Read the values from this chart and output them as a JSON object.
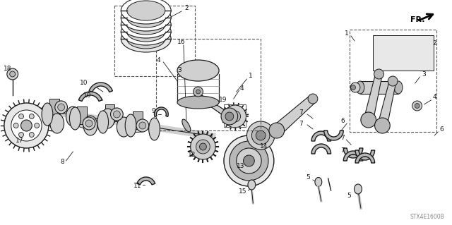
{
  "bg_color": "#ffffff",
  "fig_width": 6.4,
  "fig_height": 3.19,
  "dpi": 100,
  "watermark": "STX4E1600B",
  "direction_label": "FR.",
  "lc": "#1a1a1a",
  "tc": "#111111",
  "fs": 6.5,
  "gray1": "#d0d0d0",
  "gray2": "#b8b8b8",
  "gray3": "#909090",
  "gray4": "#e8e8e8"
}
